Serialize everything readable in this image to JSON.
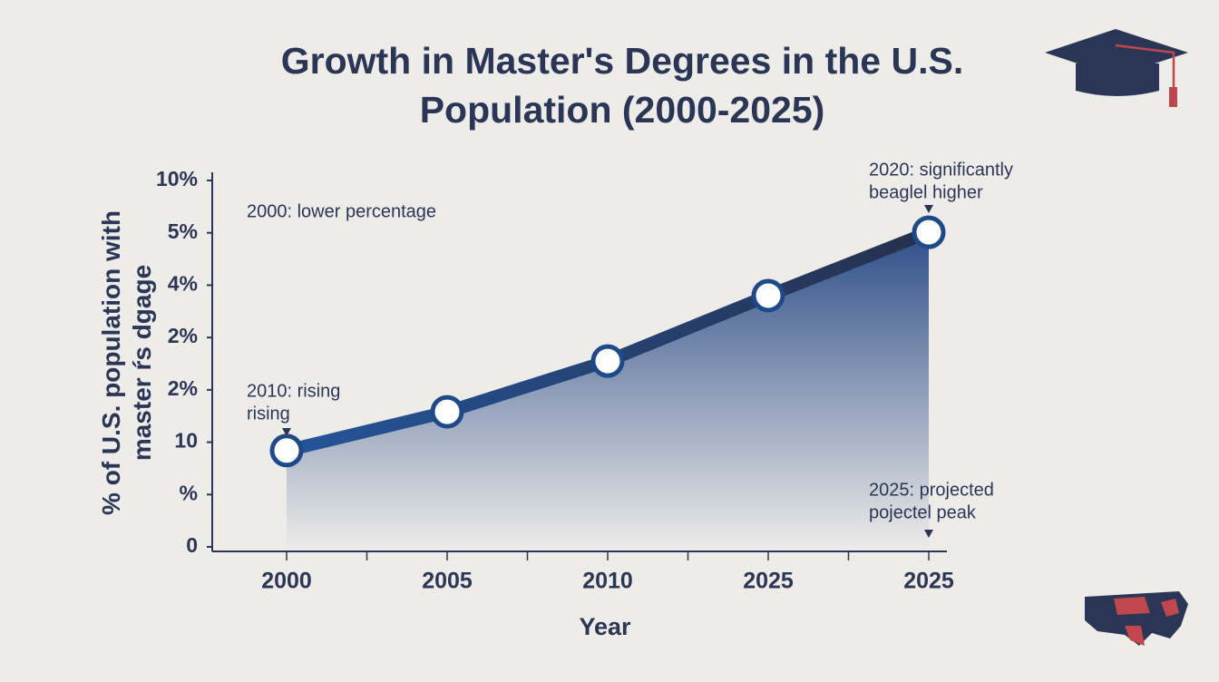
{
  "chart_data": {
    "type": "line",
    "title": "Growth in Master's Degrees in the U.S. Population (2000-2025)",
    "x_label": "Year",
    "y_label": "% of U.S. population with master ŕs dgage",
    "categories": [
      "2000",
      "2005",
      "2010",
      "2025",
      "2025"
    ],
    "values": [
      1.84,
      2.58,
      3.55,
      4.8,
      6.01
    ],
    "color": "#1f4a8a",
    "ylim": [
      0,
      7
    ],
    "yticks": [
      0,
      {
        "value": 1,
        "label": "%"
      },
      {
        "value": 2,
        "label": "10"
      },
      {
        "value": 3,
        "label": "2%"
      },
      {
        "value": 4,
        "label": "2%"
      },
      {
        "value": 5,
        "label": "4%"
      },
      {
        "value": 6,
        "label": "5%"
      },
      {
        "value": 7,
        "label": "10%"
      }
    ],
    "annotations": [
      {
        "lines": [
          "2000: lower percentage"
        ]
      },
      {
        "lines": [
          "2010: rising",
          "rising"
        ]
      },
      {
        "lines": [
          "2020: significantly",
          "beaglel higher"
        ]
      },
      {
        "lines": [
          "2025: projected",
          "pojectel peak"
        ]
      }
    ]
  }
}
